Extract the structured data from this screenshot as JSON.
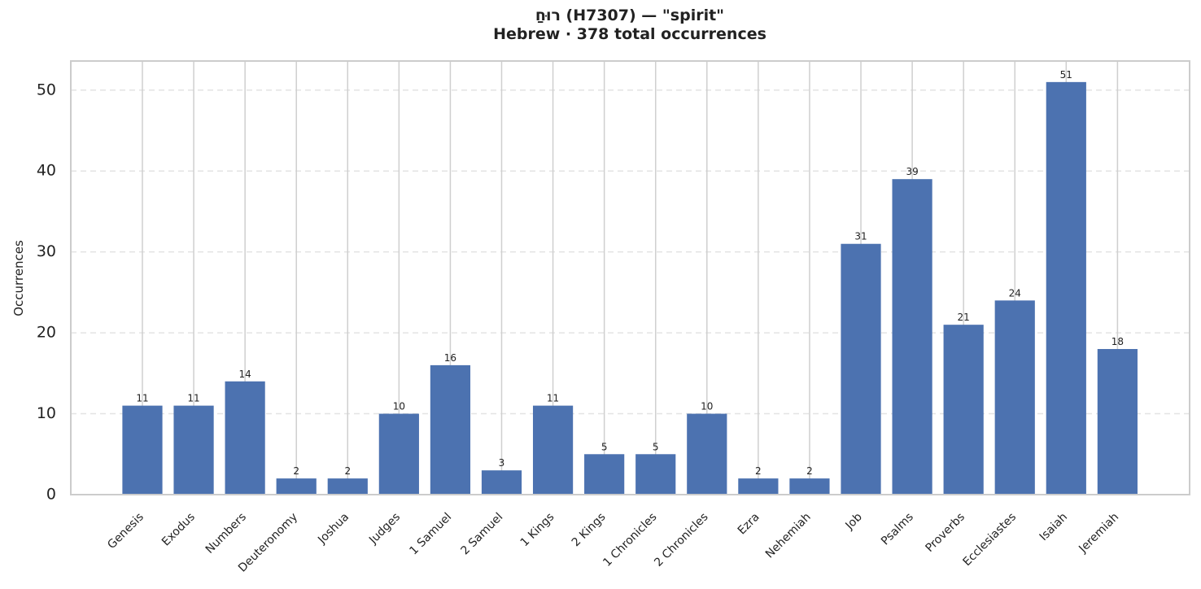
{
  "chart_data": {
    "type": "bar",
    "title": "רוּחַ (H7307)  —  \"spirit\"",
    "subtitle": "Hebrew · 378 total occurrences",
    "y_label": "Occurrences",
    "categories": [
      "Genesis",
      "Exodus",
      "Numbers",
      "Deuteronomy",
      "Joshua",
      "Judges",
      "1 Samuel",
      "2 Samuel",
      "1 Kings",
      "2 Kings",
      "1 Chronicles",
      "2 Chronicles",
      "Ezra",
      "Nehemiah",
      "Job",
      "Psalms",
      "Proverbs",
      "Ecclesiastes",
      "Isaiah",
      "Jeremiah"
    ],
    "values": [
      11,
      11,
      14,
      2,
      2,
      10,
      16,
      3,
      11,
      5,
      5,
      10,
      2,
      2,
      31,
      39,
      21,
      24,
      51,
      18
    ],
    "color": "#4c72b0",
    "ylim": [
      0,
      53.6
    ],
    "yticks": [
      0,
      10,
      20,
      30,
      40,
      50
    ],
    "grid": true
  }
}
